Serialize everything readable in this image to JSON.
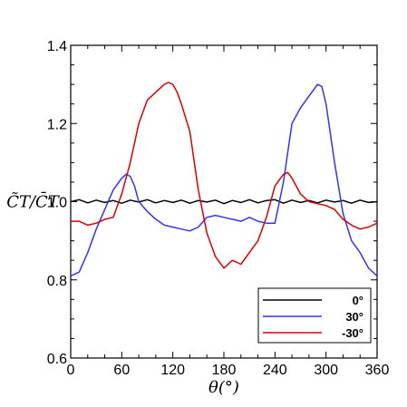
{
  "chart_data": {
    "type": "line",
    "xlabel": "θ(°)",
    "ylabel": "C̃T/C̄T",
    "xlim": [
      0,
      360
    ],
    "ylim": [
      0.6,
      1.4
    ],
    "xticks": [
      "0",
      "60",
      "120",
      "180",
      "240",
      "300",
      "360"
    ],
    "yticks": [
      "0.6",
      "0.8",
      "1.0",
      "1.2",
      "1.4"
    ],
    "xtick_values": [
      0,
      60,
      120,
      180,
      240,
      300,
      360
    ],
    "ytick_values": [
      0.6,
      0.8,
      1.0,
      1.2,
      1.4
    ],
    "grid": false,
    "legend": "bottom-right",
    "series": [
      {
        "name": "0°",
        "color": "#000000",
        "x": [
          0,
          10,
          20,
          30,
          40,
          50,
          60,
          70,
          80,
          90,
          100,
          110,
          120,
          130,
          140,
          150,
          160,
          170,
          180,
          190,
          200,
          210,
          220,
          230,
          240,
          250,
          260,
          270,
          280,
          290,
          300,
          310,
          320,
          330,
          340,
          350,
          360
        ],
        "values": [
          1.0,
          1.005,
          0.997,
          1.004,
          0.998,
          1.003,
          0.996,
          1.004,
          0.999,
          1.005,
          0.997,
          1.003,
          0.998,
          1.004,
          0.996,
          1.003,
          0.999,
          1.004,
          0.995,
          1.003,
          0.998,
          1.005,
          0.997,
          1.003,
          1.005,
          0.996,
          1.004,
          0.998,
          1.003,
          0.997,
          1.004,
          0.999,
          1.003,
          0.996,
          1.004,
          0.998,
          1.0
        ]
      },
      {
        "name": "30°",
        "color": "#3333ff",
        "x": [
          0,
          10,
          20,
          30,
          40,
          50,
          60,
          65,
          70,
          75,
          80,
          90,
          100,
          110,
          120,
          130,
          140,
          150,
          160,
          170,
          180,
          190,
          200,
          210,
          220,
          230,
          240,
          250,
          260,
          270,
          280,
          290,
          295,
          300,
          310,
          320,
          330,
          340,
          350,
          360
        ],
        "values": [
          0.81,
          0.82,
          0.87,
          0.93,
          0.98,
          1.03,
          1.06,
          1.07,
          1.065,
          1.04,
          1.0,
          0.975,
          0.955,
          0.94,
          0.935,
          0.93,
          0.925,
          0.935,
          0.96,
          0.965,
          0.96,
          0.955,
          0.95,
          0.96,
          0.95,
          0.945,
          0.945,
          1.05,
          1.2,
          1.24,
          1.27,
          1.3,
          1.295,
          1.25,
          1.1,
          0.97,
          0.9,
          0.87,
          0.83,
          0.81
        ]
      },
      {
        "name": "-30°",
        "color": "#dd0000",
        "x": [
          0,
          10,
          20,
          30,
          40,
          50,
          60,
          70,
          80,
          90,
          100,
          110,
          115,
          120,
          125,
          130,
          140,
          150,
          160,
          170,
          180,
          190,
          200,
          210,
          220,
          230,
          240,
          250,
          255,
          260,
          270,
          280,
          290,
          300,
          310,
          320,
          330,
          340,
          350,
          360
        ],
        "values": [
          0.95,
          0.95,
          0.94,
          0.945,
          0.955,
          0.96,
          1.02,
          1.1,
          1.2,
          1.26,
          1.28,
          1.3,
          1.305,
          1.3,
          1.28,
          1.25,
          1.18,
          1.03,
          0.92,
          0.86,
          0.83,
          0.85,
          0.84,
          0.87,
          0.9,
          0.96,
          1.04,
          1.07,
          1.075,
          1.06,
          1.02,
          1.0,
          0.995,
          0.99,
          0.98,
          0.955,
          0.94,
          0.93,
          0.935,
          0.945
        ]
      }
    ]
  }
}
